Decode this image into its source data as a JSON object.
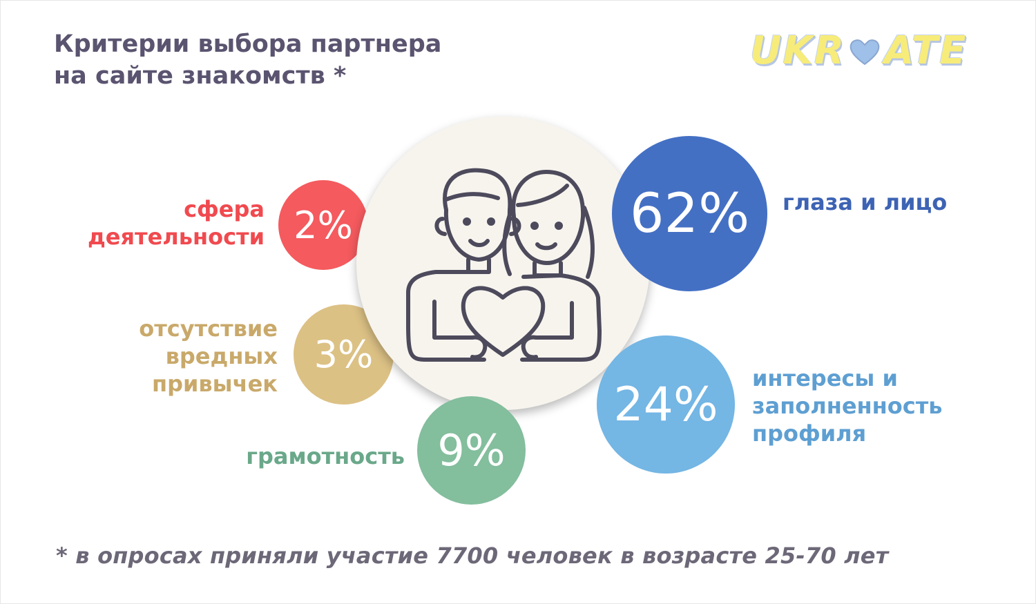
{
  "title": {
    "line1": "Критерии выбора партнера",
    "line2": "на сайте знакомств *"
  },
  "logo": {
    "left": "UKR",
    "right": "ATE",
    "icon": "heart-icon"
  },
  "center_icon": "couple-with-heart-icon",
  "footnote": "* в опросах приняли участие 7700 человек в возрасте 25-70 лет",
  "chart_data": {
    "type": "bubble",
    "title": "Критерии выбора партнера на сайте знакомств *",
    "unit": "%",
    "categories": [
      "глаза и лицо",
      "интересы и заполненность профиля",
      "грамотность",
      "отсутствие вредных привычек",
      "сфера деятельности"
    ],
    "values": [
      62,
      24,
      9,
      3,
      2
    ],
    "items": [
      {
        "value": 62,
        "value_label": "62%",
        "label_lines": [
          "глаза и лицо"
        ],
        "color": "#4470c4"
      },
      {
        "value": 24,
        "value_label": "24%",
        "label_lines": [
          "интересы и",
          "заполненность",
          "профиля"
        ],
        "color": "#74b6e4"
      },
      {
        "value": 9,
        "value_label": "9%",
        "label_lines": [
          "грамотность"
        ],
        "color": "#83be9d"
      },
      {
        "value": 3,
        "value_label": "3%",
        "label_lines": [
          "отсутствие",
          "вредных",
          "привычек"
        ],
        "color": "#dcc185"
      },
      {
        "value": 2,
        "value_label": "2%",
        "label_lines": [
          "сфера",
          "деятельности"
        ],
        "color": "#f45a5e"
      }
    ],
    "label_colors": [
      "#3d63b4",
      "#5e9fd2",
      "#6aa88a",
      "#c9a96a",
      "#f04a4f"
    ]
  }
}
